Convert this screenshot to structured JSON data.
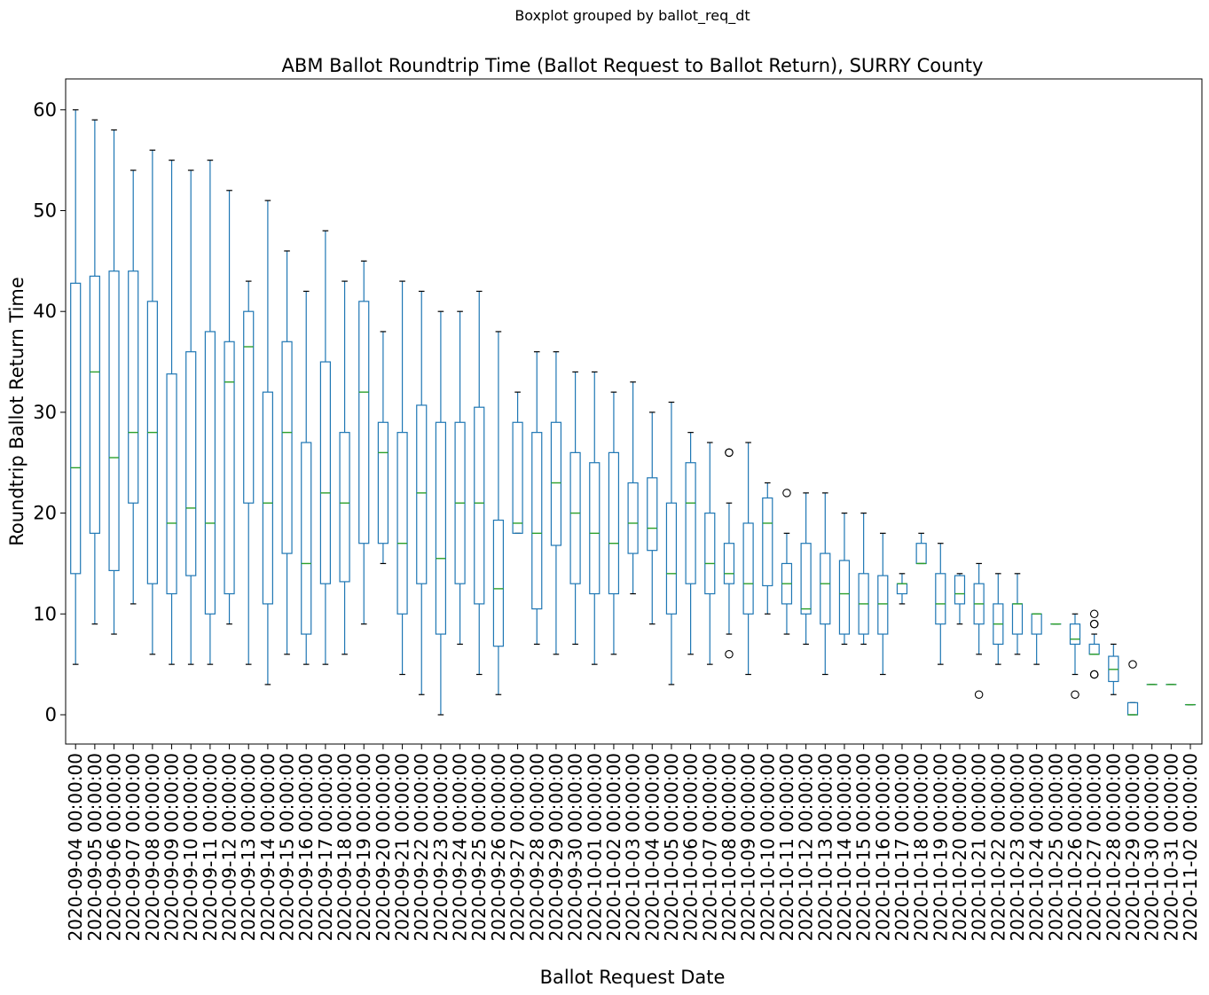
{
  "chart_data": {
    "type": "boxplot",
    "suptitle": "Boxplot grouped by ballot_req_dt",
    "title": "ABM Ballot Roundtrip Time (Ballot Request to Ballot Return), SURRY County",
    "xlabel": "Ballot Request Date",
    "ylabel": "Roundtrip Ballot Return Time",
    "ylim": [
      -3,
      63
    ],
    "yticks": [
      0,
      10,
      20,
      30,
      40,
      50,
      60
    ],
    "grid": false,
    "colors": {
      "box": "#1f77b4",
      "median": "#2ca02c",
      "whisker": "#1f77b4",
      "cap": "#000000",
      "flier": "#000000"
    },
    "categories": [
      "2020-09-04 00:00:00",
      "2020-09-05 00:00:00",
      "2020-09-06 00:00:00",
      "2020-09-07 00:00:00",
      "2020-09-08 00:00:00",
      "2020-09-09 00:00:00",
      "2020-09-10 00:00:00",
      "2020-09-11 00:00:00",
      "2020-09-12 00:00:00",
      "2020-09-13 00:00:00",
      "2020-09-14 00:00:00",
      "2020-09-15 00:00:00",
      "2020-09-16 00:00:00",
      "2020-09-17 00:00:00",
      "2020-09-18 00:00:00",
      "2020-09-19 00:00:00",
      "2020-09-20 00:00:00",
      "2020-09-21 00:00:00",
      "2020-09-22 00:00:00",
      "2020-09-23 00:00:00",
      "2020-09-24 00:00:00",
      "2020-09-25 00:00:00",
      "2020-09-26 00:00:00",
      "2020-09-27 00:00:00",
      "2020-09-28 00:00:00",
      "2020-09-29 00:00:00",
      "2020-09-30 00:00:00",
      "2020-10-01 00:00:00",
      "2020-10-02 00:00:00",
      "2020-10-03 00:00:00",
      "2020-10-04 00:00:00",
      "2020-10-05 00:00:00",
      "2020-10-06 00:00:00",
      "2020-10-07 00:00:00",
      "2020-10-08 00:00:00",
      "2020-10-09 00:00:00",
      "2020-10-10 00:00:00",
      "2020-10-11 00:00:00",
      "2020-10-12 00:00:00",
      "2020-10-13 00:00:00",
      "2020-10-14 00:00:00",
      "2020-10-15 00:00:00",
      "2020-10-16 00:00:00",
      "2020-10-17 00:00:00",
      "2020-10-18 00:00:00",
      "2020-10-19 00:00:00",
      "2020-10-20 00:00:00",
      "2020-10-21 00:00:00",
      "2020-10-22 00:00:00",
      "2020-10-23 00:00:00",
      "2020-10-24 00:00:00",
      "2020-10-25 00:00:00",
      "2020-10-26 00:00:00",
      "2020-10-27 00:00:00",
      "2020-10-28 00:00:00",
      "2020-10-29 00:00:00",
      "2020-10-30 00:00:00",
      "2020-10-31 00:00:00",
      "2020-11-02 00:00:00"
    ],
    "boxes": [
      {
        "min": 5,
        "q1": 14,
        "median": 24.5,
        "q3": 42.8,
        "max": 60,
        "fliers": []
      },
      {
        "min": 9,
        "q1": 18,
        "median": 34,
        "q3": 43.5,
        "max": 59,
        "fliers": []
      },
      {
        "min": 8,
        "q1": 14.3,
        "median": 25.5,
        "q3": 44,
        "max": 58,
        "fliers": []
      },
      {
        "min": 11,
        "q1": 21,
        "median": 28,
        "q3": 44,
        "max": 54,
        "fliers": []
      },
      {
        "min": 6,
        "q1": 13,
        "median": 28,
        "q3": 41,
        "max": 56,
        "fliers": []
      },
      {
        "min": 5,
        "q1": 12,
        "median": 19,
        "q3": 33.8,
        "max": 55,
        "fliers": []
      },
      {
        "min": 5,
        "q1": 13.8,
        "median": 20.5,
        "q3": 36,
        "max": 54,
        "fliers": []
      },
      {
        "min": 5,
        "q1": 10,
        "median": 19,
        "q3": 38,
        "max": 55,
        "fliers": []
      },
      {
        "min": 9,
        "q1": 12,
        "median": 33,
        "q3": 37,
        "max": 52,
        "fliers": []
      },
      {
        "min": 5,
        "q1": 21,
        "median": 36.5,
        "q3": 40,
        "max": 43,
        "fliers": []
      },
      {
        "min": 3,
        "q1": 11,
        "median": 21,
        "q3": 32,
        "max": 51,
        "fliers": []
      },
      {
        "min": 6,
        "q1": 16,
        "median": 28,
        "q3": 37,
        "max": 46,
        "fliers": []
      },
      {
        "min": 5,
        "q1": 8,
        "median": 15,
        "q3": 27,
        "max": 42,
        "fliers": []
      },
      {
        "min": 5,
        "q1": 13,
        "median": 22,
        "q3": 35,
        "max": 48,
        "fliers": []
      },
      {
        "min": 6,
        "q1": 13.2,
        "median": 21,
        "q3": 28,
        "max": 43,
        "fliers": []
      },
      {
        "min": 9,
        "q1": 17,
        "median": 32,
        "q3": 41,
        "max": 45,
        "fliers": []
      },
      {
        "min": 15,
        "q1": 17,
        "median": 26,
        "q3": 29,
        "max": 38,
        "fliers": []
      },
      {
        "min": 4,
        "q1": 10,
        "median": 17,
        "q3": 28,
        "max": 43,
        "fliers": []
      },
      {
        "min": 2,
        "q1": 13,
        "median": 22,
        "q3": 30.7,
        "max": 42,
        "fliers": []
      },
      {
        "min": 0,
        "q1": 8,
        "median": 15.5,
        "q3": 29,
        "max": 40,
        "fliers": []
      },
      {
        "min": 7,
        "q1": 13,
        "median": 21,
        "q3": 29,
        "max": 40,
        "fliers": []
      },
      {
        "min": 4,
        "q1": 11,
        "median": 21,
        "q3": 30.5,
        "max": 42,
        "fliers": []
      },
      {
        "min": 2,
        "q1": 6.8,
        "median": 12.5,
        "q3": 19.3,
        "max": 38,
        "fliers": []
      },
      {
        "min": 18,
        "q1": 18,
        "median": 19,
        "q3": 29,
        "max": 32,
        "fliers": []
      },
      {
        "min": 7,
        "q1": 10.5,
        "median": 18,
        "q3": 28,
        "max": 36,
        "fliers": []
      },
      {
        "min": 6,
        "q1": 16.8,
        "median": 23,
        "q3": 29,
        "max": 36,
        "fliers": []
      },
      {
        "min": 7,
        "q1": 13,
        "median": 20,
        "q3": 26,
        "max": 34,
        "fliers": []
      },
      {
        "min": 5,
        "q1": 12,
        "median": 18,
        "q3": 25,
        "max": 34,
        "fliers": []
      },
      {
        "min": 6,
        "q1": 12,
        "median": 17,
        "q3": 26,
        "max": 32,
        "fliers": []
      },
      {
        "min": 12,
        "q1": 16,
        "median": 19,
        "q3": 23,
        "max": 33,
        "fliers": []
      },
      {
        "min": 9,
        "q1": 16.3,
        "median": 18.5,
        "q3": 23.5,
        "max": 30,
        "fliers": []
      },
      {
        "min": 3,
        "q1": 10,
        "median": 14,
        "q3": 21,
        "max": 31,
        "fliers": []
      },
      {
        "min": 6,
        "q1": 13,
        "median": 21,
        "q3": 25,
        "max": 28,
        "fliers": []
      },
      {
        "min": 5,
        "q1": 12,
        "median": 15,
        "q3": 20,
        "max": 27,
        "fliers": []
      },
      {
        "min": 8,
        "q1": 13,
        "median": 14,
        "q3": 17,
        "max": 21,
        "fliers": [
          26,
          26,
          6
        ]
      },
      {
        "min": 4,
        "q1": 10,
        "median": 13,
        "q3": 19,
        "max": 27,
        "fliers": []
      },
      {
        "min": 10,
        "q1": 12.8,
        "median": 19,
        "q3": 21.5,
        "max": 23,
        "fliers": []
      },
      {
        "min": 8,
        "q1": 11,
        "median": 13,
        "q3": 15,
        "max": 18,
        "fliers": [
          22
        ]
      },
      {
        "min": 7,
        "q1": 10,
        "median": 10.5,
        "q3": 17,
        "max": 22,
        "fliers": []
      },
      {
        "min": 4,
        "q1": 9,
        "median": 13,
        "q3": 16,
        "max": 22,
        "fliers": []
      },
      {
        "min": 7,
        "q1": 8,
        "median": 12,
        "q3": 15.3,
        "max": 20,
        "fliers": []
      },
      {
        "min": 7,
        "q1": 8,
        "median": 11,
        "q3": 14,
        "max": 20,
        "fliers": []
      },
      {
        "min": 4,
        "q1": 8,
        "median": 11,
        "q3": 13.8,
        "max": 18,
        "fliers": []
      },
      {
        "min": 11,
        "q1": 12,
        "median": 13,
        "q3": 13,
        "max": 14,
        "fliers": []
      },
      {
        "min": 15,
        "q1": 15,
        "median": 15,
        "q3": 17,
        "max": 18,
        "fliers": []
      },
      {
        "min": 5,
        "q1": 9,
        "median": 11,
        "q3": 14,
        "max": 17,
        "fliers": []
      },
      {
        "min": 9,
        "q1": 11,
        "median": 12,
        "q3": 13.8,
        "max": 14,
        "fliers": []
      },
      {
        "min": 6,
        "q1": 9,
        "median": 11,
        "q3": 13,
        "max": 15,
        "fliers": [
          2
        ]
      },
      {
        "min": 5,
        "q1": 7,
        "median": 9,
        "q3": 11,
        "max": 14,
        "fliers": []
      },
      {
        "min": 6,
        "q1": 8,
        "median": 11,
        "q3": 11,
        "max": 14,
        "fliers": []
      },
      {
        "min": 5,
        "q1": 8,
        "median": 10,
        "q3": 10,
        "max": 10,
        "fliers": []
      },
      {
        "min": 9,
        "q1": 9,
        "median": 9,
        "q3": 9,
        "max": 9,
        "fliers": []
      },
      {
        "min": 4,
        "q1": 7,
        "median": 7.5,
        "q3": 9,
        "max": 10,
        "fliers": [
          2
        ]
      },
      {
        "min": 6,
        "q1": 6,
        "median": 6,
        "q3": 7,
        "max": 8,
        "fliers": [
          10,
          9,
          9,
          4,
          4
        ]
      },
      {
        "min": 2,
        "q1": 3.3,
        "median": 4.5,
        "q3": 5.8,
        "max": 7,
        "fliers": []
      },
      {
        "min": 0,
        "q1": 0,
        "median": 0,
        "q3": 1.2,
        "max": 1.2,
        "fliers": [
          5
        ]
      },
      {
        "min": 3,
        "q1": 3,
        "median": 3,
        "q3": 3,
        "max": 3,
        "fliers": []
      },
      {
        "min": 3,
        "q1": 3,
        "median": 3,
        "q3": 3,
        "max": 3,
        "fliers": []
      },
      {
        "min": 1,
        "q1": 1,
        "median": 1,
        "q3": 1,
        "max": 1,
        "fliers": []
      }
    ]
  }
}
